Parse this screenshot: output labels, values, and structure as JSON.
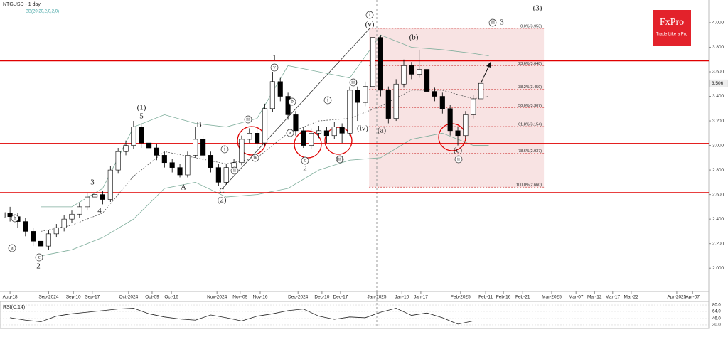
{
  "chart_data": {
    "type": "candlestick",
    "title": "NTGUSD - 1 day",
    "indicator_label": "BB(20,20,2,0,2,0)",
    "up_color": "#ffffff",
    "down_color": "#000000",
    "x": [
      0,
      2,
      4,
      6,
      8,
      10,
      12,
      14,
      16,
      18,
      20,
      22,
      24,
      26,
      28,
      30,
      32,
      34,
      36,
      38,
      40,
      42,
      44,
      46,
      48,
      50,
      52,
      54,
      56,
      58,
      60,
      62,
      64,
      66,
      68,
      70,
      72,
      74,
      76,
      78,
      80,
      82,
      84,
      86,
      88,
      90,
      92,
      94,
      96,
      98,
      100,
      102,
      104,
      106,
      108,
      110,
      112,
      114,
      116,
      118,
      120,
      122
    ],
    "open": [
      2.45,
      2.42,
      2.38,
      2.3,
      2.22,
      2.18,
      2.28,
      2.33,
      2.4,
      2.44,
      2.5,
      2.58,
      2.6,
      2.56,
      2.8,
      2.95,
      3.0,
      3.15,
      3.02,
      2.98,
      2.92,
      2.86,
      2.82,
      2.76,
      2.92,
      3.05,
      2.92,
      2.82,
      2.7,
      2.82,
      2.86,
      3.05,
      3.1,
      3.02,
      3.3,
      3.52,
      3.4,
      3.25,
      3.12,
      3.0,
      3.1,
      3.12,
      3.08,
      3.15,
      3.1,
      3.45,
      3.35,
      3.48,
      3.88,
      3.45,
      3.22,
      3.5,
      3.65,
      3.58,
      3.62,
      3.44,
      3.4,
      3.3,
      3.12,
      3.08,
      3.25,
      3.38
    ],
    "high": [
      2.5,
      2.45,
      2.41,
      2.33,
      2.25,
      2.31,
      2.36,
      2.43,
      2.47,
      2.53,
      2.61,
      2.65,
      2.63,
      2.83,
      2.98,
      3.04,
      3.2,
      3.18,
      3.05,
      3.01,
      2.95,
      2.89,
      2.85,
      2.95,
      3.15,
      3.08,
      2.95,
      2.85,
      2.85,
      2.89,
      3.08,
      3.14,
      3.13,
      3.34,
      3.6,
      3.55,
      3.43,
      3.28,
      3.15,
      3.14,
      3.16,
      3.15,
      3.19,
      3.18,
      3.48,
      3.48,
      3.52,
      3.95,
      3.9,
      3.48,
      3.54,
      3.7,
      3.68,
      3.78,
      3.65,
      3.47,
      3.43,
      3.33,
      3.15,
      3.28,
      3.41,
      3.54
    ],
    "low": [
      2.38,
      2.33,
      2.26,
      2.18,
      2.15,
      2.15,
      2.25,
      2.3,
      2.37,
      2.41,
      2.47,
      2.55,
      2.52,
      2.54,
      2.77,
      2.92,
      2.97,
      2.98,
      2.94,
      2.88,
      2.82,
      2.78,
      2.74,
      2.74,
      2.9,
      2.88,
      2.78,
      2.67,
      2.68,
      2.79,
      2.84,
      3.02,
      2.98,
      3.0,
      3.27,
      3.36,
      3.21,
      3.08,
      2.98,
      2.97,
      3.06,
      3.02,
      3.05,
      3.02,
      3.08,
      3.2,
      3.32,
      3.45,
      3.4,
      3.18,
      3.2,
      3.47,
      3.54,
      3.55,
      3.4,
      3.36,
      3.26,
      3.08,
      3.0,
      3.05,
      3.22,
      3.35
    ],
    "close": [
      2.42,
      2.38,
      2.3,
      2.22,
      2.18,
      2.28,
      2.33,
      2.4,
      2.44,
      2.5,
      2.58,
      2.6,
      2.56,
      2.8,
      2.95,
      3.0,
      3.15,
      3.02,
      2.98,
      2.92,
      2.86,
      2.82,
      2.76,
      2.92,
      3.05,
      2.92,
      2.82,
      2.7,
      2.82,
      2.86,
      3.05,
      3.1,
      3.02,
      3.3,
      3.52,
      3.4,
      3.25,
      3.12,
      3.0,
      3.1,
      3.12,
      3.08,
      3.15,
      3.1,
      3.45,
      3.35,
      3.48,
      3.88,
      3.45,
      3.22,
      3.5,
      3.65,
      3.58,
      3.62,
      3.44,
      3.4,
      3.3,
      3.12,
      3.08,
      3.25,
      3.38,
      3.506
    ],
    "xlim": [
      -2.6,
      181
    ],
    "ylim": [
      1.81,
      4.185
    ],
    "xticks": [
      {
        "value": 0,
        "label": "Aug-18"
      },
      {
        "value": 10,
        "label": "Sep-2024"
      },
      {
        "value": 16.4,
        "label": "Sep-10"
      },
      {
        "value": 21.3,
        "label": "Sep-17"
      },
      {
        "value": 30.7,
        "label": "Oct-2024"
      },
      {
        "value": 36.8,
        "label": "Oct-09"
      },
      {
        "value": 41.8,
        "label": "Oct-16"
      },
      {
        "value": 53.6,
        "label": "Nov-2024"
      },
      {
        "value": 59.6,
        "label": "Nov-09"
      },
      {
        "value": 64.8,
        "label": "Nov-16"
      },
      {
        "value": 74.6,
        "label": "Dec-2024"
      },
      {
        "value": 80.8,
        "label": "Dec-10"
      },
      {
        "value": 85.6,
        "label": "Dec-17"
      },
      {
        "value": 95,
        "label": "Jan-2025"
      },
      {
        "value": 101.5,
        "label": "Jan-10"
      },
      {
        "value": 106.4,
        "label": "Jan-17"
      },
      {
        "value": 116.7,
        "label": "Feb-2025"
      },
      {
        "value": 123.2,
        "label": "Feb-11"
      },
      {
        "value": 127.8,
        "label": "Feb-16"
      },
      {
        "value": 132.8,
        "label": "Feb-21"
      },
      {
        "value": 140.3,
        "label": "Mar-2025"
      },
      {
        "value": 146.6,
        "label": "Mar-07"
      },
      {
        "value": 151.4,
        "label": "Mar-12"
      },
      {
        "value": 156.1,
        "label": "Mar-17"
      },
      {
        "value": 160.9,
        "label": "Mar-22"
      },
      {
        "value": 172.7,
        "label": "Apr-2025"
      },
      {
        "value": 176.8,
        "label": "Apr-07"
      }
    ],
    "yticks": [
      {
        "value": 4,
        "label": "4.000"
      },
      {
        "value": 3.8,
        "label": "3.800"
      },
      {
        "value": 3.6,
        "label": "3.600"
      },
      {
        "value": 3.4,
        "label": "3.400"
      },
      {
        "value": 3.2,
        "label": "3.200"
      },
      {
        "value": 3,
        "label": "3.000"
      },
      {
        "value": 2.8,
        "label": "2.800"
      },
      {
        "value": 2.6,
        "label": "2.600"
      },
      {
        "value": 2.4,
        "label": "2.400"
      },
      {
        "value": 2.2,
        "label": "2.200"
      },
      {
        "value": 2,
        "label": "2.000"
      }
    ],
    "last_price": {
      "value": 3.506,
      "label": "3.506"
    },
    "bollinger": {
      "color": "#7fae9c",
      "x": [
        8,
        16,
        24,
        32,
        40,
        48,
        56,
        64,
        72,
        80,
        88,
        96,
        104,
        112,
        120,
        124
      ],
      "upper": [
        2.5,
        2.5,
        2.65,
        3.15,
        3.25,
        3.18,
        3.15,
        3.22,
        3.65,
        3.6,
        3.55,
        3.9,
        3.8,
        3.78,
        3.75,
        3.73
      ],
      "middle": [
        2.3,
        2.35,
        2.45,
        2.75,
        2.95,
        2.9,
        2.85,
        2.9,
        3.1,
        3.2,
        3.22,
        3.32,
        3.45,
        3.45,
        3.38,
        3.4
      ],
      "lower": [
        2.1,
        2.15,
        2.25,
        2.4,
        2.65,
        2.7,
        2.58,
        2.6,
        2.65,
        2.8,
        2.88,
        2.9,
        3.05,
        3.1,
        3.0,
        3.0
      ]
    },
    "levels": {
      "color": "#e00000",
      "values": [
        3.69,
        3.015,
        2.615
      ]
    },
    "fibonacci": {
      "x_start": 93,
      "x_end": 138.3,
      "color": "#d04040",
      "levels": [
        {
          "value": 3.953,
          "label": "0.0%(3.953)"
        },
        {
          "value": 3.648,
          "label": "23.6%(3.648)"
        },
        {
          "value": 3.459,
          "label": "38.2%(3.459)"
        },
        {
          "value": 3.307,
          "label": "50.0%(3.307)"
        },
        {
          "value": 3.154,
          "label": "61.8%(3.154)"
        },
        {
          "value": 2.937,
          "label": "78.6%(2.937)"
        },
        {
          "value": 2.66,
          "label": "100.0%(2.660)"
        }
      ]
    },
    "wave_labels": [
      "1",
      "b",
      "a",
      "c",
      "2",
      "3",
      "4",
      "(1)",
      "5",
      "A",
      "B",
      "C",
      "(2)",
      "i",
      "ii",
      "iii",
      "iv",
      "v",
      "1",
      "b",
      "a",
      "c",
      "2",
      "i",
      "(ii)",
      "(iii)",
      "(iv)",
      "(v)",
      "i",
      "(a)",
      "(b)",
      "(c)",
      "ii",
      "iii",
      "3",
      "(3)"
    ],
    "rsi": {
      "title": "RSI(C,14)",
      "color": "#222222",
      "x": [
        0,
        4,
        8,
        12,
        16,
        20,
        24,
        28,
        32,
        36,
        40,
        44,
        48,
        52,
        56,
        60,
        64,
        68,
        72,
        76,
        80,
        84,
        88,
        92,
        96,
        100,
        104,
        108,
        112,
        116,
        120
      ],
      "values": [
        48,
        42,
        38,
        52,
        58,
        62,
        66,
        70,
        72,
        58,
        50,
        45,
        42,
        55,
        48,
        40,
        52,
        58,
        66,
        70,
        52,
        44,
        50,
        48,
        62,
        72,
        54,
        60,
        48,
        32,
        40
      ],
      "ylim": [
        21,
        89
      ],
      "yticks": [
        {
          "value": 80,
          "label": "80.0"
        },
        {
          "value": 64,
          "label": "64.0"
        },
        {
          "value": 46,
          "label": "46.0"
        },
        {
          "value": 30,
          "label": "30.0"
        }
      ]
    },
    "branding": {
      "name": "FxPro",
      "tagline": "Trade Like a Pro"
    }
  }
}
